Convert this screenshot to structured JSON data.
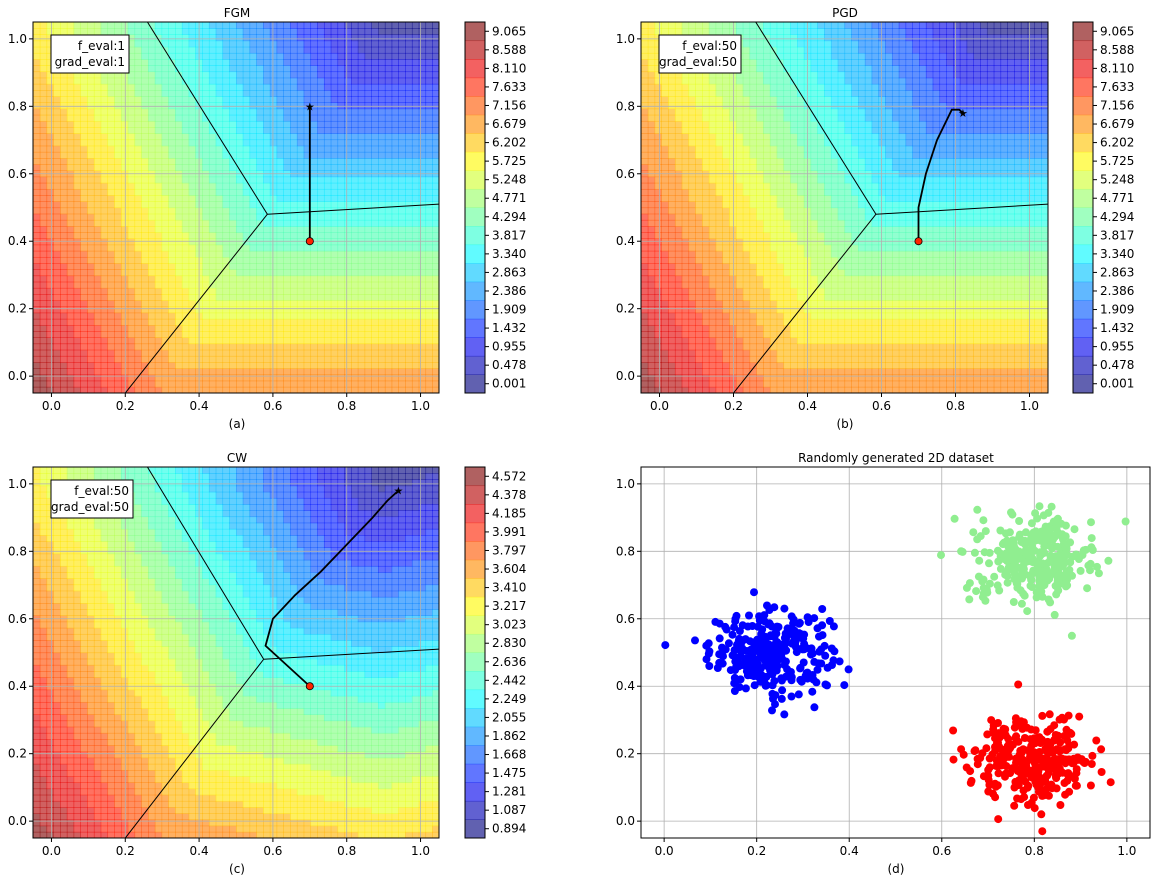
{
  "panels": [
    {
      "title": "FGM",
      "caption": "(a)",
      "info_lines": [
        "f_eval:1",
        "grad_eval:1"
      ],
      "colorbar_ticks": [
        "9.065",
        "8.588",
        "8.110",
        "7.633",
        "7.156",
        "6.679",
        "6.202",
        "5.725",
        "5.248",
        "4.771",
        "4.294",
        "3.817",
        "3.340",
        "2.863",
        "2.386",
        "1.909",
        "1.432",
        "0.955",
        "0.478",
        "0.001"
      ]
    },
    {
      "title": "PGD",
      "caption": "(b)",
      "info_lines": [
        "f_eval:50",
        "grad_eval:50"
      ],
      "colorbar_ticks": [
        "9.065",
        "8.588",
        "8.110",
        "7.633",
        "7.156",
        "6.679",
        "6.202",
        "5.725",
        "5.248",
        "4.771",
        "4.294",
        "3.817",
        "3.340",
        "2.863",
        "2.386",
        "1.909",
        "1.432",
        "0.955",
        "0.478",
        "0.001"
      ]
    },
    {
      "title": "CW",
      "caption": "(c)",
      "info_lines": [
        "f_eval:50",
        "grad_eval:50"
      ],
      "colorbar_ticks": [
        "4.572",
        "4.378",
        "4.185",
        "3.991",
        "3.797",
        "3.604",
        "3.410",
        "3.217",
        "3.023",
        "2.830",
        "2.636",
        "2.442",
        "2.249",
        "2.055",
        "1.862",
        "1.668",
        "1.475",
        "1.281",
        "1.087",
        "0.894"
      ]
    },
    {
      "title": "Randomly generated 2D dataset",
      "caption": "(d)"
    }
  ],
  "colors": {
    "class_blue": "#0000ff",
    "class_light_green": "#90ee90",
    "class_red": "#ff0000",
    "start_point": "#ff2200",
    "path": "#000000"
  },
  "chart_data": [
    {
      "type": "heatmap",
      "title": "FGM",
      "xlim": [
        -0.05,
        1.05
      ],
      "ylim": [
        -0.05,
        1.05
      ],
      "xticks": [
        "0.0",
        "0.2",
        "0.4",
        "0.6",
        "0.8",
        "1.0"
      ],
      "yticks": [
        "0.0",
        "0.2",
        "0.4",
        "0.6",
        "0.8",
        "1.0"
      ],
      "colorbar_range": [
        0.001,
        9.065
      ],
      "grid": true,
      "start": [
        0.7,
        0.4
      ],
      "path": [
        [
          0.7,
          0.4
        ],
        [
          0.7,
          0.8
        ]
      ],
      "end": [
        0.7,
        0.8
      ]
    },
    {
      "type": "heatmap",
      "title": "PGD",
      "xlim": [
        -0.05,
        1.05
      ],
      "ylim": [
        -0.05,
        1.05
      ],
      "xticks": [
        "0.0",
        "0.2",
        "0.4",
        "0.6",
        "0.8",
        "1.0"
      ],
      "yticks": [
        "0.0",
        "0.2",
        "0.4",
        "0.6",
        "0.8",
        "1.0"
      ],
      "colorbar_range": [
        0.001,
        9.065
      ],
      "grid": true,
      "start": [
        0.7,
        0.4
      ],
      "path": [
        [
          0.7,
          0.4
        ],
        [
          0.7,
          0.5
        ],
        [
          0.72,
          0.6
        ],
        [
          0.75,
          0.7
        ],
        [
          0.79,
          0.79
        ],
        [
          0.81,
          0.79
        ],
        [
          0.82,
          0.78
        ]
      ],
      "end": [
        0.82,
        0.78
      ]
    },
    {
      "type": "heatmap",
      "title": "CW",
      "xlim": [
        -0.05,
        1.05
      ],
      "ylim": [
        -0.05,
        1.05
      ],
      "xticks": [
        "0.0",
        "0.2",
        "0.4",
        "0.6",
        "0.8",
        "1.0"
      ],
      "yticks": [
        "0.0",
        "0.2",
        "0.4",
        "0.6",
        "0.8",
        "1.0"
      ],
      "colorbar_range": [
        0.894,
        4.572
      ],
      "grid": true,
      "start": [
        0.7,
        0.4
      ],
      "path": [
        [
          0.7,
          0.4
        ],
        [
          0.58,
          0.52
        ],
        [
          0.6,
          0.6
        ],
        [
          0.66,
          0.67
        ],
        [
          0.73,
          0.74
        ],
        [
          0.8,
          0.82
        ],
        [
          0.87,
          0.9
        ],
        [
          0.91,
          0.95
        ],
        [
          0.94,
          0.98
        ]
      ],
      "end": [
        0.94,
        0.98
      ]
    },
    {
      "type": "scatter",
      "title": "Randomly generated 2D dataset",
      "xlim": [
        -0.05,
        1.05
      ],
      "ylim": [
        -0.05,
        1.05
      ],
      "xticks": [
        "0.0",
        "0.2",
        "0.4",
        "0.6",
        "0.8",
        "1.0"
      ],
      "yticks": [
        "0.0",
        "0.2",
        "0.4",
        "0.6",
        "0.8",
        "1.0"
      ],
      "grid": true,
      "series": [
        {
          "color": "#0000ff",
          "center": [
            0.23,
            0.5
          ],
          "spread": [
            0.065,
            0.06
          ],
          "count": 300
        },
        {
          "color": "#90ee90",
          "center": [
            0.8,
            0.78
          ],
          "spread": [
            0.065,
            0.065
          ],
          "count": 300
        },
        {
          "color": "#ff0000",
          "center": [
            0.8,
            0.18
          ],
          "spread": [
            0.065,
            0.065
          ],
          "count": 300
        }
      ]
    }
  ]
}
